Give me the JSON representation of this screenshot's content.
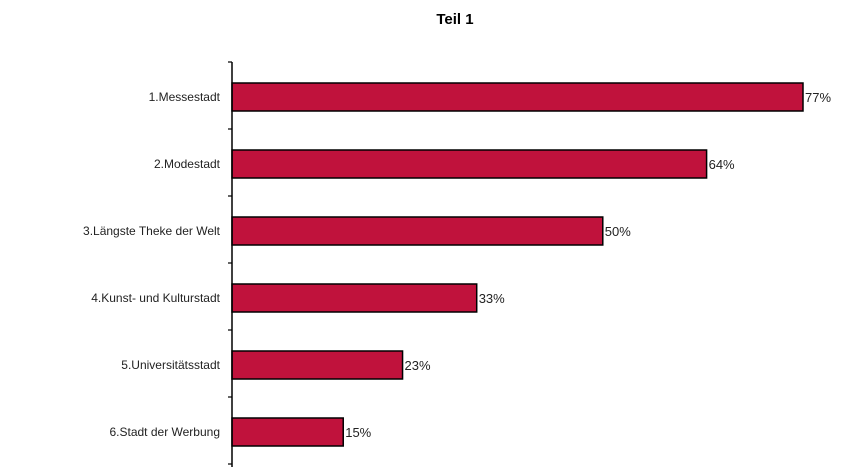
{
  "chart_data": {
    "type": "bar",
    "orientation": "horizontal",
    "title": "Teil 1",
    "categories": [
      "1.Messestadt",
      "2.Modestadt",
      "3.Längste Theke der Welt",
      "4.Kunst- und Kulturstadt",
      "5.Universitätsstadt",
      "6.Stadt der Werbung"
    ],
    "values": [
      77,
      64,
      50,
      33,
      23,
      15
    ],
    "value_labels": [
      "77%",
      "64%",
      "50%",
      "33%",
      "23%",
      "15%"
    ],
    "xlim": [
      0,
      80
    ],
    "grid": false,
    "legend": "none",
    "bar_color": "#c0123c",
    "bar_edge_color": "#000000"
  }
}
